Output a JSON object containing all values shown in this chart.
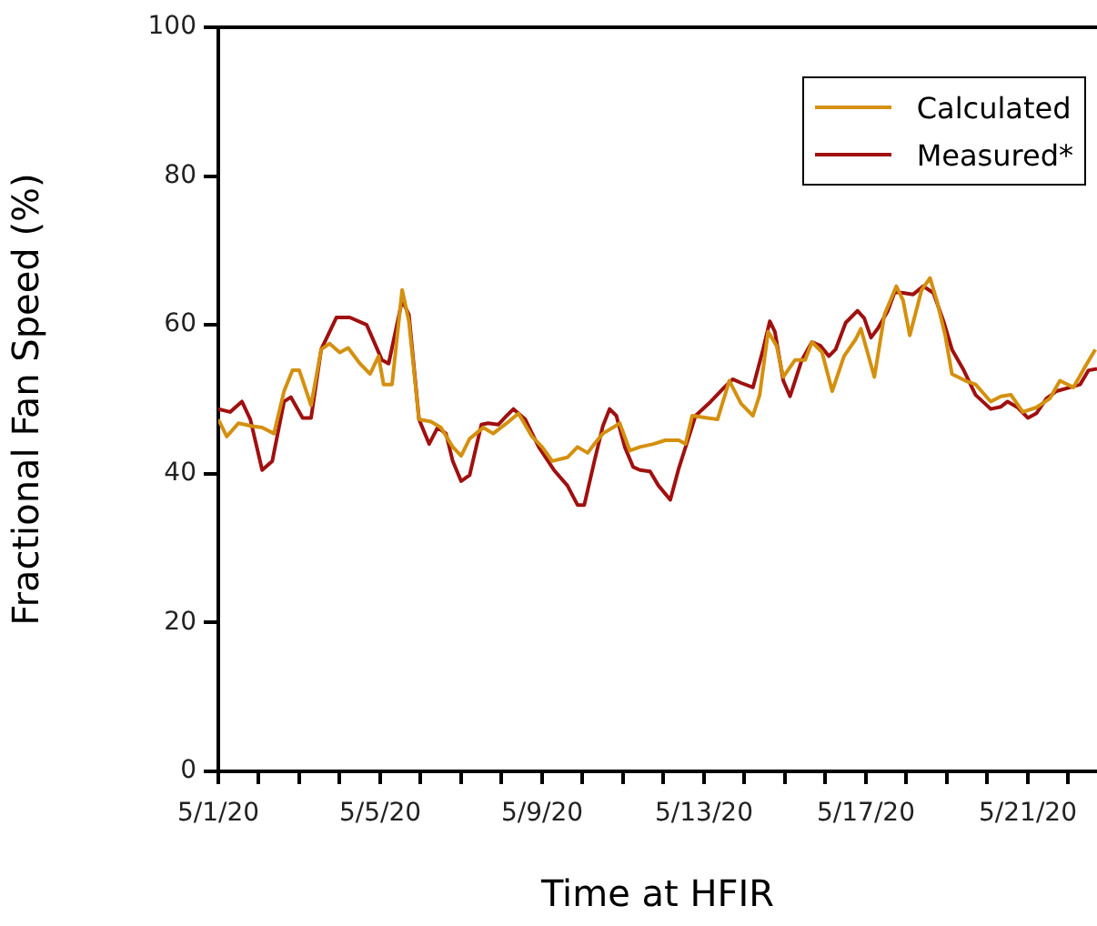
{
  "chart_data": {
    "type": "line",
    "xlabel": "Time at HFIR",
    "ylabel": "Fractional Fan Speed (%)",
    "legend": "top right",
    "grid": false,
    "marker": "none",
    "line_style": "solid",
    "xlim": [
      "--05-01T00:00",
      "--05-22T17:00"
    ],
    "ylim": [
      0,
      100
    ],
    "yticks": [
      0,
      20,
      40,
      60,
      80,
      100
    ],
    "xticks": [
      {
        "value": "--05-01",
        "label": "5/1/20"
      },
      {
        "value": "--05-02",
        "label": null
      },
      {
        "value": "--05-03",
        "label": null
      },
      {
        "value": "--05-04",
        "label": null
      },
      {
        "value": "--05-05",
        "label": "5/5/20"
      },
      {
        "value": "--05-06",
        "label": null
      },
      {
        "value": "--05-07",
        "label": null
      },
      {
        "value": "--05-08",
        "label": null
      },
      {
        "value": "--05-09",
        "label": "5/9/20"
      },
      {
        "value": "--05-10",
        "label": null
      },
      {
        "value": "--05-11",
        "label": null
      },
      {
        "value": "--05-12",
        "label": null
      },
      {
        "value": "--05-13",
        "label": "5/13/20"
      },
      {
        "value": "--05-14",
        "label": null
      },
      {
        "value": "--05-15",
        "label": null
      },
      {
        "value": "--05-16",
        "label": null
      },
      {
        "value": "--05-17",
        "label": "5/17/20"
      },
      {
        "value": "--05-18",
        "label": null
      },
      {
        "value": "--05-19",
        "label": null
      },
      {
        "value": "--05-20",
        "label": null
      },
      {
        "value": "--05-21",
        "label": "5/21/20"
      },
      {
        "value": "--05-22",
        "label": null
      }
    ],
    "series": [
      {
        "name": "Calculated",
        "color": "#d4900f",
        "x": [
          "--05-01T00:00",
          "--05-01T05:00",
          "--05-01T12:00",
          "--05-01T20:00",
          "--05-02T02:00",
          "--05-02T09:00",
          "--05-02T15:00",
          "--05-02T20:00",
          "--05-03T00:00",
          "--05-03T07:00",
          "--05-03T13:00",
          "--05-03T18:00",
          "--05-04T00:00",
          "--05-04T05:00",
          "--05-04T12:00",
          "--05-04T18:00",
          "--05-04T23:00",
          "--05-05T02:00",
          "--05-05T07:00",
          "--05-05T13:00",
          "--05-05T17:00",
          "--05-05T23:00",
          "--05-06T06:00",
          "--05-06T12:00",
          "--05-06T19:00",
          "--05-07T00:00",
          "--05-07T05:00",
          "--05-07T13:00",
          "--05-07T19:00",
          "--05-08T03:00",
          "--05-08T10:00",
          "--05-08T18:00",
          "--05-09T00:00",
          "--05-09T06:00",
          "--05-09T15:00",
          "--05-09T21:00",
          "--05-10T03:00",
          "--05-10T07:00",
          "--05-10T12:00",
          "--05-10T18:00",
          "--05-10T22:00",
          "--05-11T04:00",
          "--05-11T10:00",
          "--05-11T18:00",
          "--05-12T01:00",
          "--05-12T09:00",
          "--05-12T13:00",
          "--05-12T17:00",
          "--05-13T02:00",
          "--05-13T08:00",
          "--05-13T15:00",
          "--05-13T22:00",
          "--05-14T05:00",
          "--05-14T09:00",
          "--05-14T14:00",
          "--05-14T19:00",
          "--05-14T23:00",
          "--05-15T06:00",
          "--05-15T12:00",
          "--05-15T16:00",
          "--05-15T22:00",
          "--05-16T04:00",
          "--05-16T11:00",
          "--05-16T18:00",
          "--05-16T21:00",
          "--05-17T05:00",
          "--05-17T11:00",
          "--05-17T18:00",
          "--05-17T22:00",
          "--05-18T02:00",
          "--05-18T09:00",
          "--05-18T14:00",
          "--05-18T18:00",
          "--05-18T23:00",
          "--05-19T03:00",
          "--05-19T11:00",
          "--05-19T17:00",
          "--05-20T02:00",
          "--05-20T08:00",
          "--05-20T14:00",
          "--05-20T21:00",
          "--05-21T05:00",
          "--05-21T13:00",
          "--05-21T19:00",
          "--05-22T03:00",
          "--05-22T10:00",
          "--05-22T16:00"
        ],
        "values": [
          47.3,
          45,
          46.8,
          46.4,
          46.2,
          45.4,
          51.1,
          53.9,
          53.9,
          49.2,
          56.7,
          57.5,
          56.3,
          56.9,
          54.8,
          53.4,
          55.8,
          52,
          52,
          64.7,
          60.5,
          47.3,
          47,
          46.2,
          43.6,
          42.4,
          44.7,
          46.2,
          45.4,
          46.8,
          48.1,
          45,
          43.6,
          41.7,
          42.2,
          43.6,
          42.8,
          44,
          45.4,
          46.2,
          46.8,
          43.1,
          43.6,
          44,
          44.5,
          44.5,
          44,
          47.8,
          47.5,
          47.3,
          52.5,
          49.4,
          47.8,
          50.6,
          59.1,
          57.2,
          53,
          55.3,
          55.3,
          57.7,
          56.3,
          51.1,
          55.8,
          58.1,
          59.5,
          53,
          61.4,
          65.2,
          63.3,
          58.6,
          64.7,
          66.3,
          63.3,
          58.6,
          53.4,
          52.5,
          52,
          49.7,
          50.4,
          50.6,
          48.3,
          48.9,
          50.1,
          52.5,
          51.6,
          54.4,
          56.7
        ]
      },
      {
        "name": "Measured*",
        "color": "#a01010",
        "x": [
          "--05-01T00:00",
          "--05-01T07:00",
          "--05-01T14:00",
          "--05-01T19:00",
          "--05-02T02:00",
          "--05-02T08:00",
          "--05-02T15:00",
          "--05-02T19:00",
          "--05-03T02:00",
          "--05-03T07:00",
          "--05-03T13:00",
          "--05-03T22:00",
          "--05-04T06:00",
          "--05-04T16:00",
          "--05-05T01:00",
          "--05-05T05:00",
          "--05-05T13:00",
          "--05-05T17:00",
          "--05-05T23:00",
          "--05-06T05:00",
          "--05-06T10:00",
          "--05-06T15:00",
          "--05-06T19:00",
          "--05-07T00:00",
          "--05-07T05:00",
          "--05-07T12:00",
          "--05-07T16:00",
          "--05-07T22:00",
          "--05-08T03:00",
          "--05-08T07:00",
          "--05-08T14:00",
          "--05-08T22:00",
          "--05-09T07:00",
          "--05-09T15:00",
          "--05-09T21:00",
          "--05-10T01:00",
          "--05-10T07:00",
          "--05-10T12:00",
          "--05-10T16:00",
          "--05-10T20:00",
          "--05-11T01:00",
          "--05-11T06:00",
          "--05-11T10:00",
          "--05-11T16:00",
          "--05-11T21:00",
          "--05-12T04:00",
          "--05-12T09:00",
          "--05-12T19:00",
          "--05-13T04:00",
          "--05-13T12:00",
          "--05-13T17:00",
          "--05-13T22:00",
          "--05-14T05:00",
          "--05-14T11:00",
          "--05-14T15:00",
          "--05-14T18:00",
          "--05-14T23:00",
          "--05-15T03:00",
          "--05-15T10:00",
          "--05-15T16:00",
          "--05-15T21:00",
          "--05-16T02:00",
          "--05-16T06:00",
          "--05-16T12:00",
          "--05-16T19:00",
          "--05-16T23:00",
          "--05-17T03:00",
          "--05-17T07:00",
          "--05-17T13:00",
          "--05-17T17:00",
          "--05-17T22:00",
          "--05-18T04:00",
          "--05-18T10:00",
          "--05-18T16:00",
          "--05-18T22:00",
          "--05-19T03:00",
          "--05-19T10:00",
          "--05-19T17:00",
          "--05-20T02:00",
          "--05-20T08:00",
          "--05-20T12:00",
          "--05-20T18:00",
          "--05-21T00:00",
          "--05-21T05:00",
          "--05-21T11:00",
          "--05-21T17:00",
          "--05-22T01:00",
          "--05-22T07:00",
          "--05-22T12:00",
          "--05-22T17:00"
        ],
        "values": [
          48.7,
          48.3,
          49.7,
          47.3,
          40.5,
          41.7,
          49.7,
          50.3,
          47.5,
          47.5,
          56.7,
          61,
          61,
          60,
          55.3,
          54.8,
          63.3,
          61.4,
          47.3,
          44,
          46.2,
          45.4,
          41.7,
          39,
          39.8,
          46.6,
          46.8,
          46.6,
          47.8,
          48.7,
          47.3,
          43.6,
          40.5,
          38.4,
          35.8,
          35.8,
          41.7,
          46.4,
          48.7,
          47.8,
          43.6,
          40.9,
          40.5,
          40.3,
          38.4,
          36.5,
          40.7,
          47.8,
          49.7,
          51.6,
          52.7,
          52.2,
          51.6,
          56.7,
          60.5,
          59.1,
          52.5,
          50.4,
          55.3,
          57.7,
          57.2,
          55.8,
          56.7,
          60.3,
          61.9,
          60.9,
          58.3,
          59.5,
          61.9,
          64.4,
          64.3,
          64.1,
          65.2,
          64.3,
          60.5,
          56.7,
          53.9,
          50.6,
          48.7,
          49,
          49.7,
          48.9,
          47.5,
          48.1,
          50.1,
          51.1,
          51.6,
          52,
          53.9,
          54.1
        ]
      }
    ]
  }
}
